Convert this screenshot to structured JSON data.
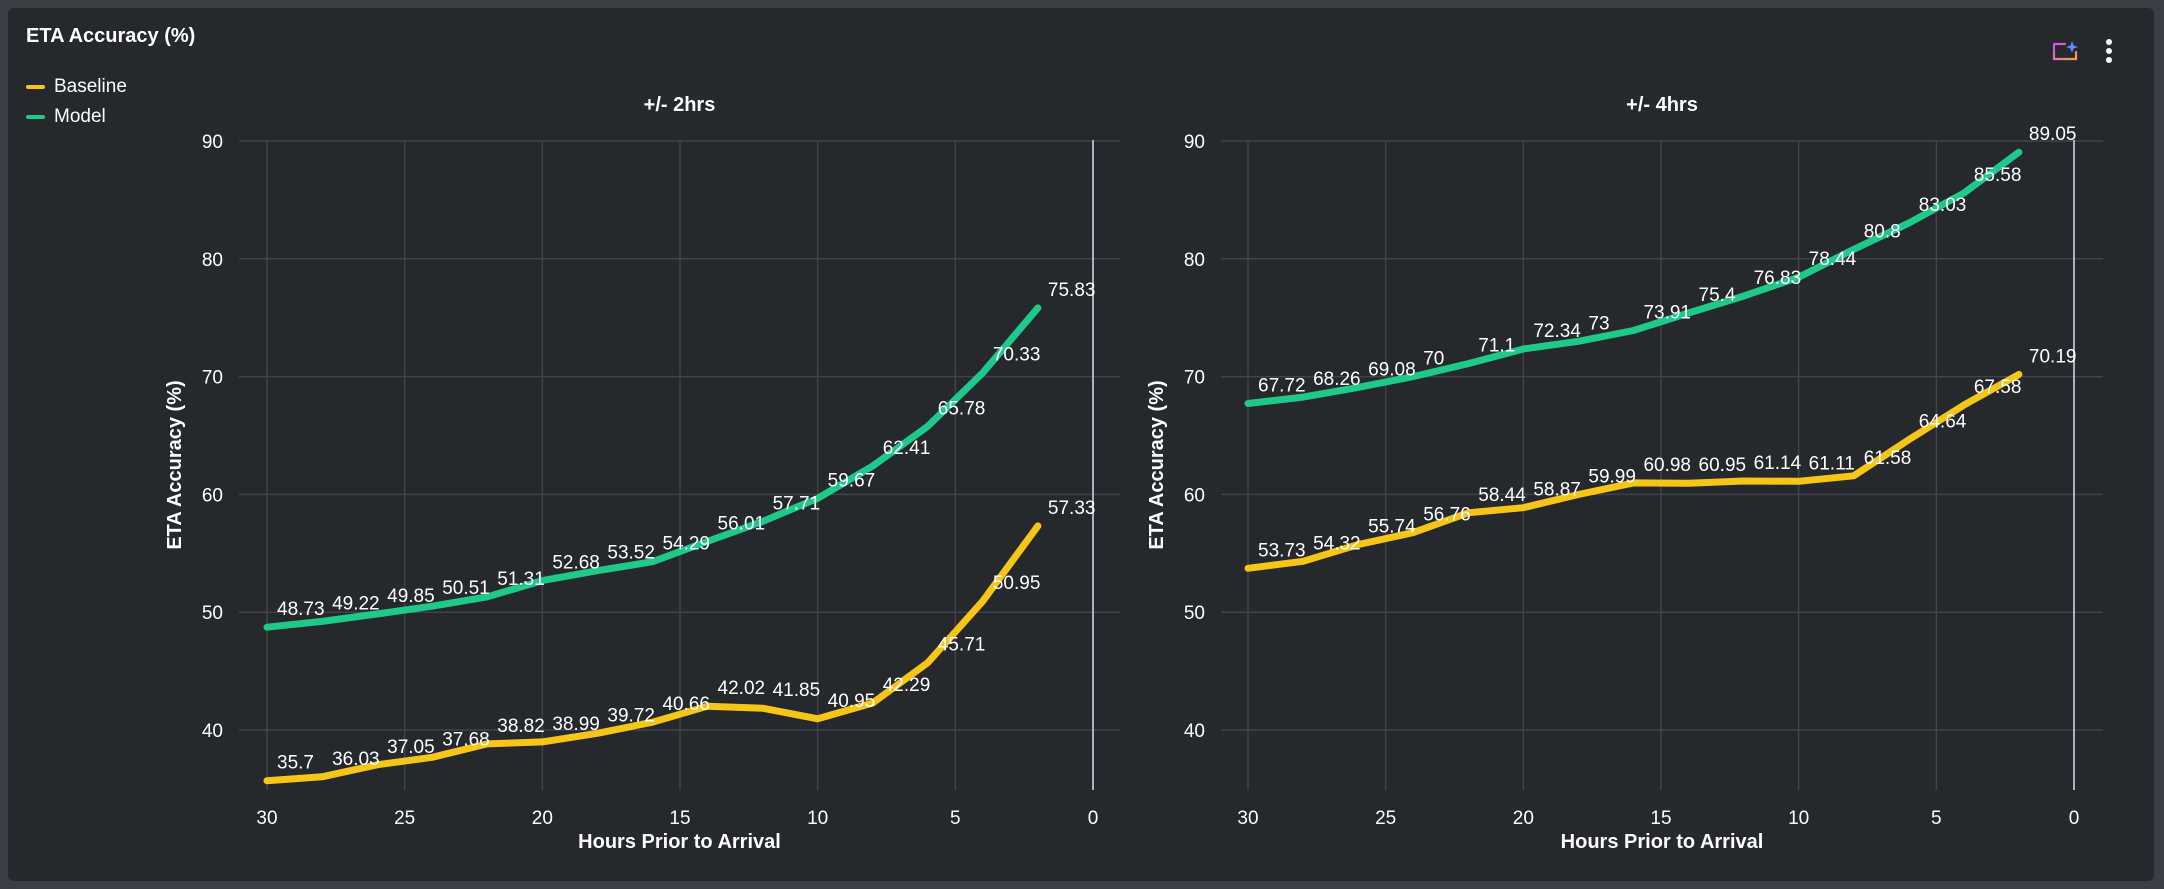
{
  "card": {
    "title": "ETA Accuracy (%)"
  },
  "legend": [
    {
      "label": "Baseline",
      "color": "#f5c518"
    },
    {
      "label": "Model",
      "color": "#1ec98a"
    }
  ],
  "toolbar": {
    "insights_icon": "sparkle-chart-icon",
    "menu_icon": "more-vertical-icon"
  },
  "chart_data": [
    {
      "type": "line",
      "title": "+/- 2hrs",
      "xlabel": "Hours Prior to Arrival",
      "ylabel": "ETA Accuracy (%)",
      "xlim": [
        30,
        0
      ],
      "xticks": [
        30,
        25,
        20,
        15,
        10,
        5,
        0
      ],
      "ylim": [
        35,
        90
      ],
      "yticks": [
        40,
        50,
        60,
        70,
        80,
        90
      ],
      "grid": true,
      "x": [
        30,
        28,
        26,
        24,
        22,
        20,
        18,
        16,
        14,
        12,
        10,
        8,
        6,
        4,
        2
      ],
      "series": [
        {
          "name": "Baseline",
          "color": "#f5c518",
          "values": [
            35.7,
            36.03,
            37.05,
            37.68,
            38.82,
            38.99,
            39.72,
            40.66,
            42.02,
            41.85,
            40.95,
            42.29,
            45.71,
            50.95,
            57.33
          ]
        },
        {
          "name": "Model",
          "color": "#1ec98a",
          "values": [
            48.73,
            49.22,
            49.85,
            50.51,
            51.31,
            52.68,
            53.52,
            54.29,
            56.01,
            57.71,
            59.67,
            62.41,
            65.78,
            70.33,
            75.83
          ]
        }
      ]
    },
    {
      "type": "line",
      "title": "+/- 4hrs",
      "xlabel": "Hours Prior to Arrival",
      "ylabel": "ETA Accuracy (%)",
      "xlim": [
        30,
        0
      ],
      "xticks": [
        30,
        25,
        20,
        15,
        10,
        5,
        0
      ],
      "ylim": [
        35,
        90
      ],
      "yticks": [
        40,
        50,
        60,
        70,
        80,
        90
      ],
      "grid": true,
      "x": [
        30,
        28,
        26,
        24,
        22,
        20,
        18,
        16,
        14,
        12,
        10,
        8,
        6,
        4,
        2
      ],
      "series": [
        {
          "name": "Baseline",
          "color": "#f5c518",
          "values": [
            53.73,
            54.32,
            55.74,
            56.76,
            58.44,
            58.87,
            59.99,
            60.98,
            60.95,
            61.14,
            61.11,
            61.58,
            64.64,
            67.58,
            70.19
          ]
        },
        {
          "name": "Model",
          "color": "#1ec98a",
          "values": [
            67.72,
            68.26,
            69.08,
            70,
            71.1,
            72.34,
            73,
            73.91,
            75.4,
            76.83,
            78.44,
            80.8,
            83.03,
            85.58,
            89.05
          ]
        }
      ]
    }
  ]
}
